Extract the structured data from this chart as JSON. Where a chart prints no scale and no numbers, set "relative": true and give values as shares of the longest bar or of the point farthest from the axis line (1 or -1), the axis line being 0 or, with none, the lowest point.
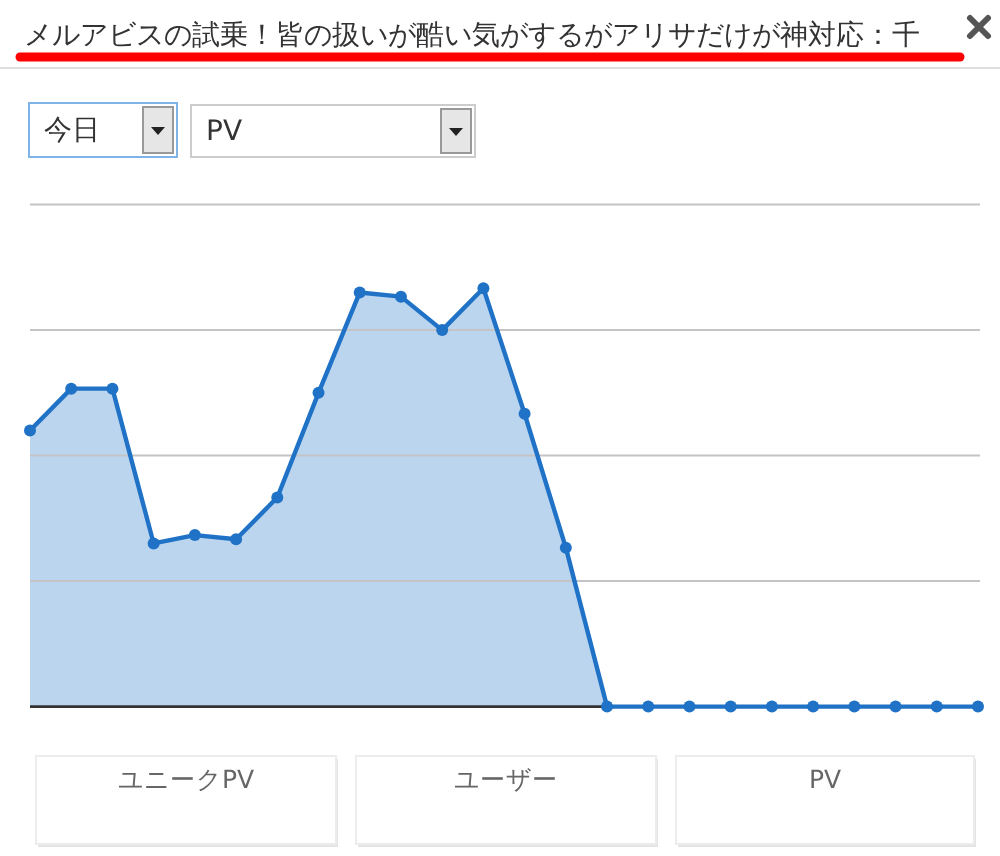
{
  "chart_data": {
    "type": "area",
    "title": "メルアビスの試乗！皆の扱いが酷い気がするがアリサだけが神対応：千",
    "categories": [
      null,
      null,
      null,
      null,
      null,
      null,
      null,
      null,
      null,
      null,
      null,
      null,
      null,
      null,
      null,
      null,
      null,
      null,
      null,
      null,
      null,
      null,
      null,
      null
    ],
    "series": [
      {
        "color": "#1f72c6",
        "values": [
          0.66,
          0.76,
          0.76,
          0.39,
          0.41,
          0.4,
          0.5,
          0.75,
          0.99,
          0.98,
          0.9,
          1,
          0.7,
          0.38,
          0,
          0,
          0,
          0,
          0,
          0,
          0,
          0,
          0,
          0
        ]
      }
    ],
    "relative": true,
    "grid": "y",
    "marker": "circle",
    "annotations": [
      "今日",
      "PV",
      "ユニークPV",
      "ユーザー",
      "PV"
    ]
  }
}
